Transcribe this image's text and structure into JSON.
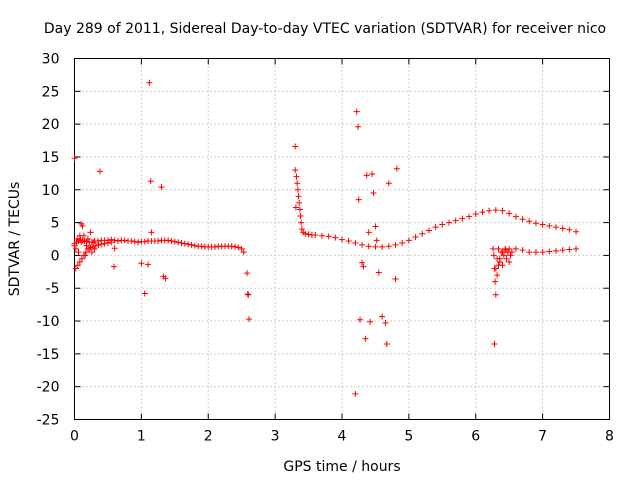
{
  "chart_data": {
    "type": "scatter",
    "title": "Day 289 of 2011, Sidereal Day-to-day VTEC variation (SDTVAR) for receiver nico",
    "xlabel": "GPS time / hours",
    "ylabel": "SDTVAR / TECUs",
    "xlim": [
      0,
      8
    ],
    "ylim": [
      -25,
      30
    ],
    "xticks": [
      0,
      1,
      2,
      3,
      4,
      5,
      6,
      7,
      8
    ],
    "yticks": [
      -25,
      -20,
      -15,
      -10,
      -5,
      0,
      5,
      10,
      15,
      20,
      25,
      30
    ],
    "grid": true,
    "marker": "+",
    "color": "#ff0000",
    "series": [
      {
        "name": "SDTVAR",
        "x": [
          0.0,
          0.03,
          0.06,
          0.09,
          0.12,
          0.15,
          0.18,
          0.22,
          0.26,
          0.3,
          0.35,
          0.4,
          0.45,
          0.5,
          0.55,
          0.6,
          0.65,
          0.7,
          0.75,
          0.8,
          0.85,
          0.9,
          0.95,
          1.0,
          1.05,
          1.1,
          1.15,
          1.2,
          1.25,
          1.3,
          1.35,
          1.4,
          1.45,
          1.5,
          1.55,
          1.6,
          1.65,
          1.7,
          1.75,
          1.8,
          1.85,
          1.9,
          1.95,
          2.0,
          2.05,
          2.1,
          2.15,
          2.2,
          2.25,
          2.3,
          2.35,
          2.4,
          2.45,
          2.5,
          2.53,
          0.02,
          0.05,
          0.08,
          0.11,
          0.14,
          0.17,
          0.2,
          0.24,
          0.28,
          0.32,
          0.36,
          0.4,
          0.45,
          0.5,
          0.55,
          0.0,
          0.02,
          0.04,
          0.06,
          0.08,
          0.1,
          0.12,
          0.14,
          0.16,
          0.18,
          0.2,
          0.22,
          0.24,
          0.26,
          0.28,
          0.3,
          3.3,
          3.32,
          3.33,
          3.34,
          3.35,
          3.36,
          3.37,
          3.38,
          3.39,
          3.4,
          3.42,
          3.45,
          3.5,
          3.55,
          3.6,
          3.7,
          3.8,
          3.9,
          4.0,
          4.1,
          4.2,
          4.3,
          4.4,
          4.5,
          4.6,
          4.7,
          4.8,
          4.9,
          5.0,
          5.1,
          5.2,
          5.3,
          5.4,
          5.5,
          5.6,
          5.7,
          5.8,
          5.9,
          6.0,
          6.1,
          6.2,
          6.3,
          6.4,
          6.5,
          6.6,
          6.7,
          6.8,
          6.9,
          7.0,
          7.1,
          7.2,
          7.3,
          7.4,
          7.5,
          6.26,
          6.27,
          6.28,
          6.29,
          6.3,
          6.32,
          6.34,
          6.36,
          6.4,
          6.45,
          6.5,
          6.6,
          6.7,
          6.8,
          6.9,
          7.0,
          7.1,
          7.2,
          7.3,
          7.4,
          7.5,
          6.3,
          6.32,
          6.34,
          6.36,
          6.38,
          6.4,
          6.42,
          6.44,
          6.46,
          6.48,
          6.5,
          6.52,
          6.54,
          0.0,
          0.1,
          0.38,
          0.59,
          0.6,
          1.0,
          1.05,
          1.1,
          1.12,
          1.14,
          1.15,
          1.3,
          1.33,
          1.36,
          2.58,
          2.59,
          2.6,
          2.61,
          3.3,
          3.31,
          4.2,
          4.22,
          4.24,
          4.25,
          4.27,
          4.3,
          4.32,
          4.35,
          4.37,
          4.4,
          4.42,
          4.45,
          4.47,
          4.5,
          4.52,
          4.55,
          4.6,
          4.65,
          4.67,
          4.7,
          4.8,
          4.82,
          6.28
        ],
        "y": [
          1.8,
          2.0,
          2.2,
          2.4,
          2.3,
          2.2,
          2.1,
          2.0,
          2.0,
          2.2,
          2.2,
          2.3,
          2.3,
          2.3,
          2.4,
          2.3,
          2.2,
          2.3,
          2.3,
          2.2,
          2.2,
          2.1,
          2.0,
          2.1,
          2.1,
          2.2,
          2.2,
          2.2,
          2.2,
          2.3,
          2.3,
          2.3,
          2.2,
          2.1,
          2.0,
          1.9,
          1.8,
          1.7,
          1.6,
          1.5,
          1.4,
          1.4,
          1.3,
          1.3,
          1.3,
          1.3,
          1.4,
          1.4,
          1.4,
          1.4,
          1.4,
          1.3,
          1.2,
          1.0,
          0.5,
          -2.0,
          -1.5,
          -1.0,
          -0.5,
          0.0,
          0.5,
          1.0,
          1.2,
          1.4,
          1.5,
          1.6,
          1.7,
          1.8,
          1.9,
          2.0,
          1.5,
          1.0,
          2.5,
          0.5,
          3.0,
          2.0,
          4.5,
          3.0,
          0.0,
          1.5,
          2.5,
          1.0,
          3.5,
          0.5,
          2.0,
          1.0,
          13.0,
          12.0,
          11.0,
          10.0,
          9.0,
          8.0,
          7.0,
          6.0,
          5.0,
          4.0,
          3.5,
          3.3,
          3.2,
          3.1,
          3.1,
          3.0,
          2.9,
          2.7,
          2.4,
          2.2,
          1.9,
          1.6,
          1.4,
          1.3,
          1.3,
          1.4,
          1.6,
          1.9,
          2.3,
          2.8,
          3.3,
          3.8,
          4.3,
          4.7,
          5.0,
          5.3,
          5.6,
          5.9,
          6.3,
          6.6,
          6.8,
          6.9,
          6.8,
          6.4,
          5.9,
          5.5,
          5.2,
          4.9,
          4.7,
          4.5,
          4.3,
          4.1,
          3.9,
          3.6,
          1.0,
          0.0,
          -2.0,
          -4.0,
          -6.0,
          -3.0,
          -1.5,
          -0.5,
          0.5,
          0.8,
          1.0,
          1.0,
          0.8,
          0.5,
          0.5,
          0.5,
          0.6,
          0.7,
          0.8,
          0.9,
          1.0,
          -2.0,
          -0.5,
          1.0,
          -1.0,
          0.5,
          -1.5,
          0.0,
          1.0,
          -0.5,
          0.5,
          -1.0,
          0.0,
          0.5,
          14.8,
          4.8,
          12.8,
          -1.7,
          1.1,
          -1.2,
          -5.8,
          -1.4,
          26.3,
          11.3,
          3.5,
          10.4,
          -3.2,
          -3.5,
          -2.7,
          -5.9,
          -6.0,
          -9.7,
          16.6,
          7.3,
          -21.1,
          21.9,
          19.6,
          8.5,
          -9.8,
          -1.1,
          -1.7,
          -12.7,
          12.2,
          3.5,
          -10.1,
          12.4,
          9.5,
          4.4,
          2.3,
          -2.6,
          -9.3,
          -10.3,
          -13.5,
          11.0,
          -3.6,
          13.2,
          -13.5
        ]
      }
    ]
  }
}
